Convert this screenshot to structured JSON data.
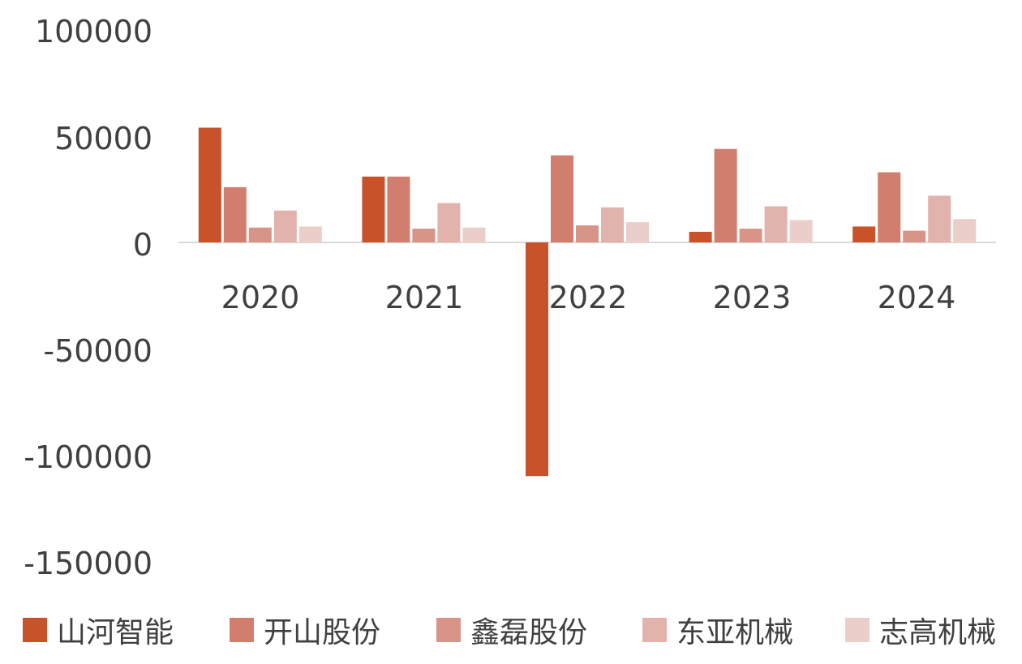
{
  "chart_data": {
    "type": "bar",
    "categories": [
      "2020",
      "2021",
      "2022",
      "2023",
      "2024"
    ],
    "series": [
      {
        "name": "山河智能",
        "color": "#C8522A",
        "values": [
          54000,
          31000,
          -110000,
          5000,
          7500
        ]
      },
      {
        "name": "开山股份",
        "color": "#D17E6E",
        "values": [
          26000,
          31000,
          41000,
          44000,
          33000
        ]
      },
      {
        "name": "鑫磊股份",
        "color": "#D99488",
        "values": [
          7000,
          6500,
          8000,
          6500,
          5500
        ]
      },
      {
        "name": "东亚机械",
        "color": "#E2B2AC",
        "values": [
          15000,
          18500,
          16500,
          17000,
          22000
        ]
      },
      {
        "name": "志高机械",
        "color": "#EBCDC9",
        "values": [
          7500,
          7000,
          9500,
          10500,
          11000
        ]
      }
    ],
    "yticks": [
      "100000",
      "50000",
      "0",
      "-50000",
      "-100000",
      "-150000"
    ],
    "ylim": [
      -150000,
      100000
    ],
    "legend_position": "bottom",
    "grid": false
  }
}
